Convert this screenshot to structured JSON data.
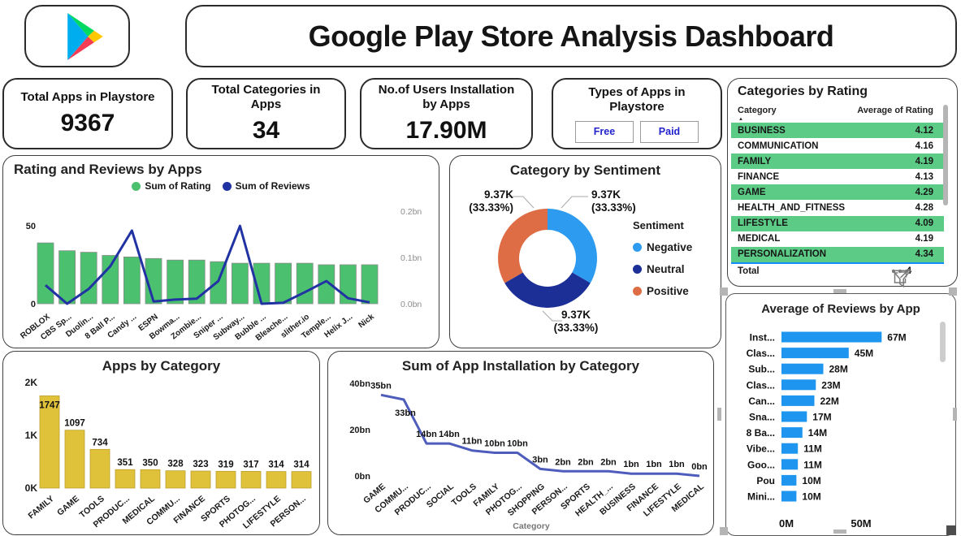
{
  "header": {
    "title": "Google Play Store Analysis Dashboard",
    "logo_name": "google-play-logo",
    "logo_colors": {
      "blue": "#00AEEF",
      "green": "#00D95F",
      "yellow": "#FFC800",
      "red": "#F43C55"
    }
  },
  "kpis": {
    "total_apps": {
      "label": "Total Apps in Playstore",
      "value": "9367"
    },
    "total_categories": {
      "label": "Total Categories in Apps",
      "value": "34"
    },
    "users_installation": {
      "label": "No.of Users Installation by Apps",
      "value": "17.90M"
    },
    "app_types": {
      "label": "Types of Apps in Playstore",
      "buttons": [
        "Free",
        "Paid"
      ]
    }
  },
  "colors": {
    "table_highlight": "#5BCB86",
    "total_divider": "#118DFF",
    "filter_button_text": "#2323CE",
    "hover_icon_gray": "#7a7a7a"
  },
  "rating_table": {
    "title": "Categories by Rating",
    "columns": [
      "Category",
      "Average of Rating"
    ],
    "rows": [
      {
        "category": "BUSINESS",
        "rating": "4.12",
        "highlight": true
      },
      {
        "category": "COMMUNICATION",
        "rating": "4.16",
        "highlight": false
      },
      {
        "category": "FAMILY",
        "rating": "4.19",
        "highlight": true
      },
      {
        "category": "FINANCE",
        "rating": "4.13",
        "highlight": false
      },
      {
        "category": "GAME",
        "rating": "4.29",
        "highlight": true
      },
      {
        "category": "HEALTH_AND_FITNESS",
        "rating": "4.28",
        "highlight": false
      },
      {
        "category": "LIFESTYLE",
        "rating": "4.09",
        "highlight": true
      },
      {
        "category": "MEDICAL",
        "rating": "4.19",
        "highlight": false
      },
      {
        "category": "PERSONALIZATION",
        "rating": "4.34",
        "highlight": true
      }
    ],
    "total_label": "Total",
    "total_value_visible": "4",
    "highlight_color": "#5BCB86"
  },
  "chart_data": [
    {
      "id": "rating_reviews",
      "type": "bar",
      "title": "Rating and Reviews by Apps",
      "categories": [
        "ROBLOX",
        "CBS Sp...",
        "Duolin...",
        "8 Ball P...",
        "Candy ...",
        "ESPN",
        "Bowma...",
        "Zombie...",
        "Sniper ...",
        "Subway...",
        "Bubble ...",
        "Bleache...",
        "slither.io",
        "Temple...",
        "Helix J...",
        "Nick"
      ],
      "series": [
        {
          "name": "Sum of Rating",
          "type": "bar",
          "axis": "left",
          "color": "#4BC170",
          "values": [
            39,
            34,
            33,
            31,
            30,
            29,
            28,
            28,
            27,
            26,
            26,
            26,
            26,
            25,
            25,
            25
          ]
        },
        {
          "name": "Sum of Reviews",
          "type": "line",
          "axis": "right",
          "color": "#2133A3",
          "values": [
            0.04,
            0.0,
            0.032,
            0.081,
            0.158,
            0.005,
            0.009,
            0.011,
            0.049,
            0.168,
            0.0,
            0.002,
            0.025,
            0.049,
            0.012,
            0.003
          ]
        }
      ],
      "left_axis": {
        "max": 50,
        "ticks": [
          {
            "label": "50",
            "value": 50
          },
          {
            "label": "0",
            "value": 0
          }
        ]
      },
      "right_axis": {
        "max": 0.2,
        "ticks": [
          {
            "label": "0.2bn",
            "value": 0.2
          },
          {
            "label": "0.1bn",
            "value": 0.1
          },
          {
            "label": "0.0bn",
            "value": 0.0
          }
        ]
      }
    },
    {
      "id": "category_sentiment",
      "type": "pie",
      "title": "Category by Sentiment",
      "legend_title": "Sentiment",
      "slices": [
        {
          "label": "Negative",
          "value": "9.37K",
          "pct": 33.33,
          "pct_label": "(33.33%)",
          "color": "#2D9BF0"
        },
        {
          "label": "Neutral",
          "value": "9.37K",
          "pct": 33.33,
          "pct_label": "(33.33%)",
          "color": "#1C2F96"
        },
        {
          "label": "Positive",
          "value": "9.37K",
          "pct": 33.34,
          "pct_label": "(33.33%)",
          "color": "#DE6D45"
        }
      ]
    },
    {
      "id": "apps_by_category",
      "type": "bar",
      "title": "Apps by Category",
      "categories": [
        "FAMILY",
        "GAME",
        "TOOLS",
        "PRODUC...",
        "MEDICAL",
        "COMMU...",
        "FINANCE",
        "SPORTS",
        "PHOTOG...",
        "LIFESTYLE",
        "PERSON..."
      ],
      "values": [
        1747,
        1097,
        734,
        351,
        350,
        328,
        323,
        319,
        317,
        314,
        314
      ],
      "color": "#E0C23A",
      "ymax": 2000,
      "yticks": [
        {
          "label": "2K",
          "value": 2000
        },
        {
          "label": "1K",
          "value": 1000
        },
        {
          "label": "0K",
          "value": 0
        }
      ]
    },
    {
      "id": "installation_by_category",
      "type": "line",
      "title": "Sum of App Installation by Category",
      "xlabel": "Category",
      "categories": [
        "GAME",
        "COMMU...",
        "PRODUC...",
        "SOCIAL",
        "TOOLS",
        "FAMILY",
        "PHOTOG...",
        "SHOPPING",
        "PERSON...",
        "SPORTS",
        "HEALTH_...",
        "BUSINESS",
        "FINANCE",
        "LIFESTYLE",
        "MEDICAL"
      ],
      "values": [
        35,
        33,
        14,
        14,
        11,
        10,
        10,
        3,
        2,
        2,
        2,
        1,
        1,
        1,
        0
      ],
      "labels": [
        "35bn",
        "33bn",
        "14bn",
        "14bn",
        "11bn",
        "10bn",
        "10bn",
        "3bn",
        "2bn",
        "2bn",
        "2bn",
        "1bn",
        "1bn",
        "1bn",
        "0bn"
      ],
      "color": "#4E5CBC",
      "ymax": 40,
      "yticks": [
        {
          "label": "40bn",
          "value": 40
        },
        {
          "label": "20bn",
          "value": 20
        },
        {
          "label": "0bn",
          "value": 0
        }
      ]
    },
    {
      "id": "avg_reviews_by_app",
      "type": "bar",
      "title": "Average of Reviews by App",
      "categories": [
        "Inst...",
        "Clas...",
        "Sub...",
        "Clas...",
        "Can...",
        "Sna...",
        "8 Ba...",
        "Vibe...",
        "Goo...",
        "Pou",
        "Mini..."
      ],
      "values": [
        67,
        45,
        28,
        23,
        22,
        17,
        14,
        11,
        11,
        10,
        10
      ],
      "labels": [
        "67M",
        "45M",
        "28M",
        "23M",
        "22M",
        "17M",
        "14M",
        "11M",
        "11M",
        "10M",
        "10M"
      ],
      "color": "#1E96F0",
      "xticks": [
        "0M",
        "50M"
      ],
      "xmax": 50
    }
  ]
}
